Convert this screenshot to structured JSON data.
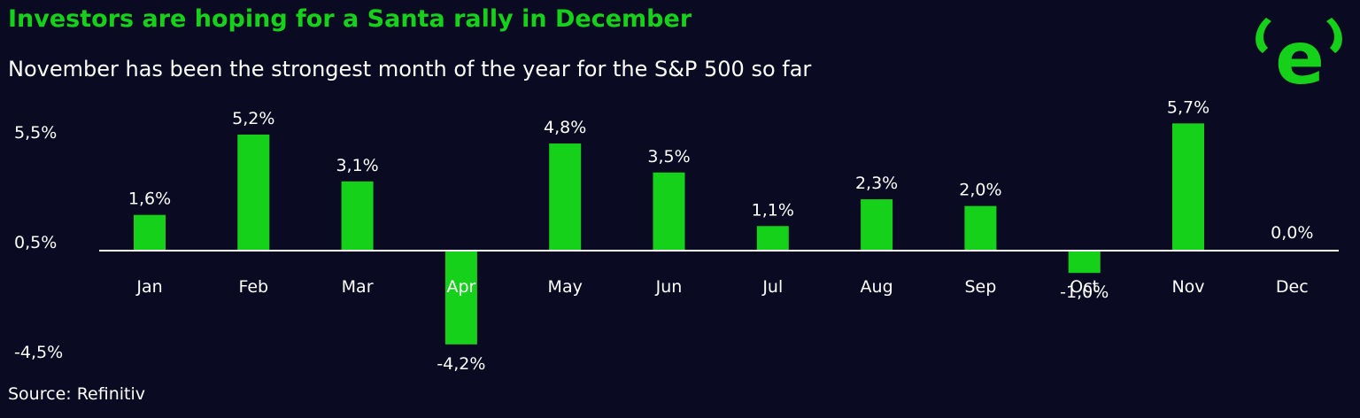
{
  "title": "Investors are hoping for a Santa rally in December",
  "subtitle": "November has been the strongest month of the year for the S&P 500 so far",
  "source": "Source: Refinitiv",
  "colors": {
    "background": "#0a0a23",
    "accent": "#16d11a",
    "text": "#ffffff"
  },
  "logo": {
    "name": "etoro-bull-e-logo",
    "letter": "e"
  },
  "chart_data": {
    "type": "bar",
    "categories": [
      "Jan",
      "Feb",
      "Mar",
      "Apr",
      "May",
      "Jun",
      "Jul",
      "Aug",
      "Sep",
      "Oct",
      "Nov",
      "Dec"
    ],
    "values": [
      1.6,
      5.2,
      3.1,
      -4.2,
      4.8,
      3.5,
      1.1,
      2.3,
      2.0,
      -1.0,
      5.7,
      0.0
    ],
    "data_labels": [
      "1,6%",
      "5,2%",
      "3,1%",
      "-4,2%",
      "4,8%",
      "3,5%",
      "1,1%",
      "2,3%",
      "2,0%",
      "-1,0%",
      "5,7%",
      "0,0%"
    ],
    "y_tick_labels": [
      "5,5%",
      "0,5%",
      "-4,5%"
    ],
    "y_ticks": [
      5.5,
      0.5,
      -4.5
    ],
    "bar_color": "#16d11a",
    "grid": false
  }
}
